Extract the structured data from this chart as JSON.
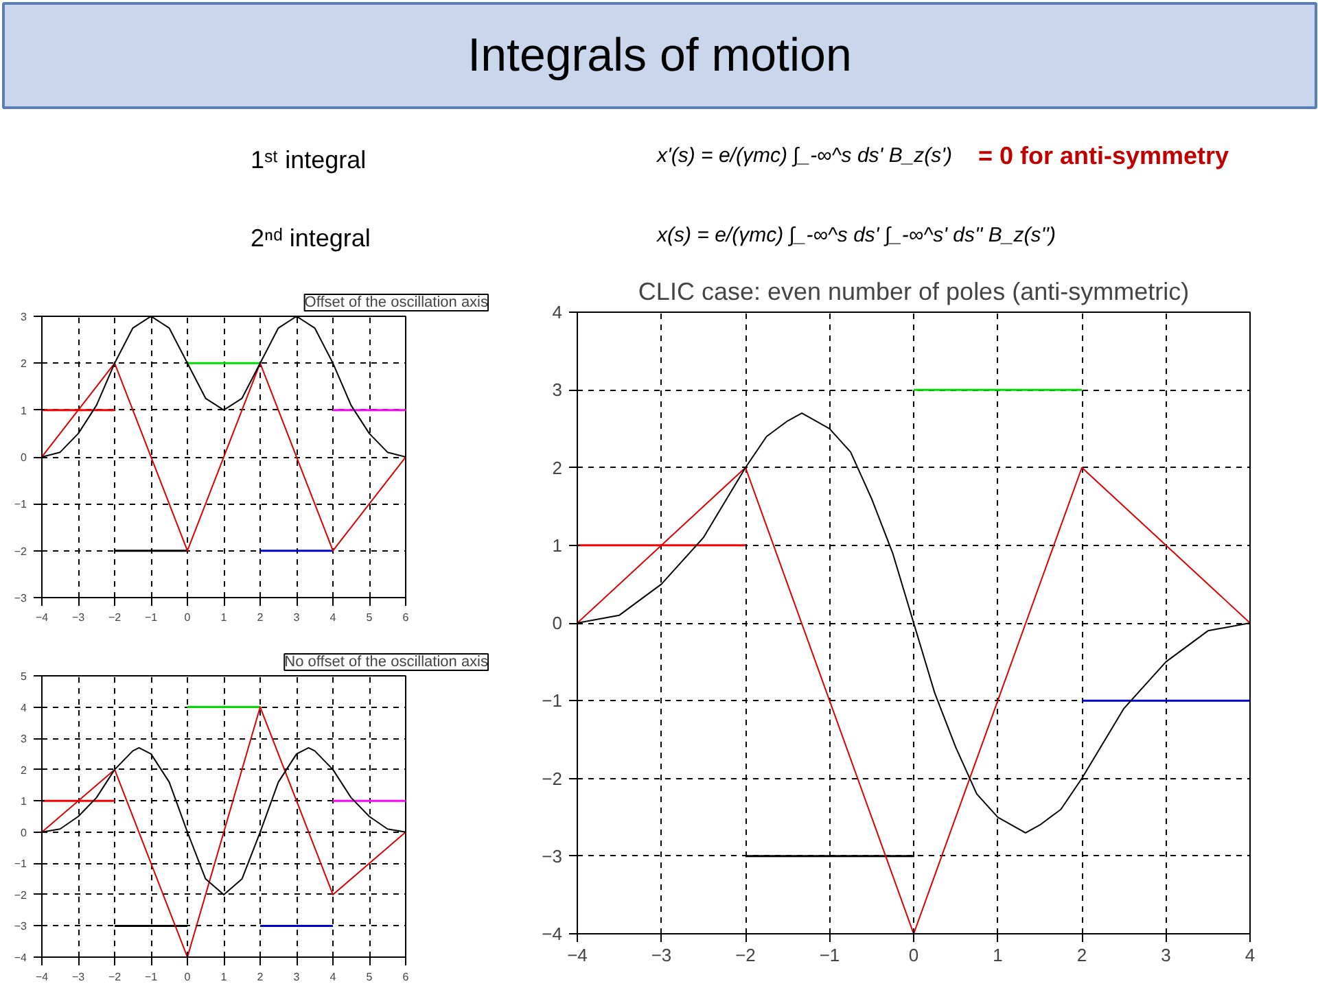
{
  "chart_data": [
    {
      "type": "other",
      "title": "Integrals of motion",
      "annotations": [
        "1ˢᵗ integral",
        "x'(s) = e/(γmc) ∫_-∞^s ds' B_z(s')",
        "= 0 for anti-symmetry",
        "2ⁿᵈ integral",
        "x(s) = e/(γmc) ∫_-∞^s ds' ∫_-∞^s' ds'' B_z(s'')"
      ]
    },
    {
      "type": "line",
      "annotations": [
        "Offset of the oscillation axis"
      ],
      "xlim": [
        -4,
        6
      ],
      "ylim": [
        -3,
        3
      ],
      "xticks": [
        -4,
        -3,
        -2,
        -1,
        0,
        1,
        2,
        3,
        4,
        5,
        6
      ],
      "yticks": [
        -3,
        -2,
        -1,
        0,
        1,
        2,
        3
      ],
      "grid": true,
      "series": [
        {
          "color": "#ff0000",
          "x": [
            -4,
            -2
          ],
          "values": [
            1,
            1
          ]
        },
        {
          "color": "#000000",
          "x": [
            -2,
            0
          ],
          "values": [
            -2,
            -2
          ]
        },
        {
          "color": "#00dd00",
          "x": [
            0,
            2
          ],
          "values": [
            2,
            2
          ]
        },
        {
          "color": "#0000cc",
          "x": [
            2,
            4
          ],
          "values": [
            -2,
            -2
          ]
        },
        {
          "color": "#ff00ff",
          "x": [
            4,
            6
          ],
          "values": [
            1,
            1
          ]
        },
        {
          "color": "#dd0000",
          "x": [
            -4,
            -2,
            0,
            2,
            4,
            6
          ],
          "values": [
            0,
            2,
            -2,
            2,
            -2,
            0
          ]
        },
        {
          "color": "#000000",
          "x": [
            -4,
            -3.5,
            -3,
            -2.5,
            -2,
            -1.5,
            -1,
            -0.5,
            0,
            0.5,
            1,
            1.5,
            2,
            2.5,
            3,
            3.5,
            4,
            4.5,
            5,
            5.5,
            6
          ],
          "values": [
            0,
            0.1,
            0.5,
            1.1,
            2,
            2.75,
            3,
            2.75,
            2,
            1.25,
            1,
            1.25,
            2,
            2.75,
            3,
            2.75,
            2,
            1.1,
            0.5,
            0.1,
            0
          ]
        }
      ]
    },
    {
      "type": "line",
      "annotations": [
        "No offset of the oscillation axis"
      ],
      "xlim": [
        -4,
        6
      ],
      "ylim": [
        -4,
        5
      ],
      "xticks": [
        -4,
        -3,
        -2,
        -1,
        0,
        1,
        2,
        3,
        4,
        5,
        6
      ],
      "yticks": [
        -4,
        -3,
        -2,
        -1,
        0,
        1,
        2,
        3,
        4,
        5
      ],
      "grid": true,
      "series": [
        {
          "color": "#ff0000",
          "x": [
            -4,
            -2
          ],
          "values": [
            1,
            1
          ]
        },
        {
          "color": "#000000",
          "x": [
            -2,
            0
          ],
          "values": [
            -3,
            -3
          ]
        },
        {
          "color": "#00dd00",
          "x": [
            0,
            2
          ],
          "values": [
            4,
            4
          ]
        },
        {
          "color": "#0000cc",
          "x": [
            2,
            4
          ],
          "values": [
            -3,
            -3
          ]
        },
        {
          "color": "#ff00ff",
          "x": [
            4,
            6
          ],
          "values": [
            1,
            1
          ]
        },
        {
          "color": "#dd0000",
          "x": [
            -4,
            -2,
            0,
            2,
            4,
            6
          ],
          "values": [
            0,
            2,
            -4,
            4,
            -2,
            0
          ]
        },
        {
          "color": "#000000",
          "x": [
            -4,
            -3.5,
            -3,
            -2.5,
            -2,
            -1.5,
            -1.33,
            -1,
            -0.5,
            0,
            0.5,
            1,
            1.5,
            2,
            2.5,
            3,
            3.33,
            3.5,
            4,
            4.5,
            5,
            5.5,
            6
          ],
          "values": [
            0,
            0.1,
            0.5,
            1.1,
            2,
            2.6,
            2.7,
            2.5,
            1.6,
            0,
            -1.5,
            -2,
            -1.5,
            0,
            1.6,
            2.5,
            2.7,
            2.6,
            2,
            1.1,
            0.5,
            0.1,
            0
          ]
        }
      ]
    },
    {
      "type": "line",
      "title": "CLIC case: even number of poles (anti-symmetric)",
      "xlim": [
        -4,
        4
      ],
      "ylim": [
        -4,
        4
      ],
      "xticks": [
        -4,
        -3,
        -2,
        -1,
        0,
        1,
        2,
        3,
        4
      ],
      "yticks": [
        -4,
        -3,
        -2,
        -1,
        0,
        1,
        2,
        3,
        4
      ],
      "grid": true,
      "series": [
        {
          "color": "#ff0000",
          "x": [
            -4,
            -2
          ],
          "values": [
            1,
            1
          ]
        },
        {
          "color": "#000000",
          "x": [
            -2,
            0
          ],
          "values": [
            -3,
            -3
          ]
        },
        {
          "color": "#00dd00",
          "x": [
            0,
            2
          ],
          "values": [
            3,
            3
          ]
        },
        {
          "color": "#0000cc",
          "x": [
            2,
            4
          ],
          "values": [
            -1,
            -1
          ]
        },
        {
          "color": "#dd0000",
          "x": [
            -4,
            -2,
            0,
            2,
            4
          ],
          "values": [
            0,
            2,
            -4,
            2,
            0
          ]
        },
        {
          "color": "#000000",
          "x": [
            -4,
            -3.5,
            -3,
            -2.5,
            -2,
            -1.75,
            -1.5,
            -1.33,
            -1,
            -0.75,
            -0.5,
            -0.25,
            0,
            0.25,
            0.5,
            0.75,
            1,
            1.33,
            1.5,
            1.75,
            2,
            2.5,
            3,
            3.5,
            4
          ],
          "values": [
            0,
            0.1,
            0.5,
            1.1,
            2,
            2.4,
            2.6,
            2.7,
            2.5,
            2.2,
            1.6,
            0.9,
            0,
            -0.9,
            -1.6,
            -2.2,
            -2.5,
            -2.7,
            -2.6,
            -2.4,
            -2,
            -1.1,
            -0.5,
            -0.1,
            0
          ]
        }
      ]
    }
  ]
}
